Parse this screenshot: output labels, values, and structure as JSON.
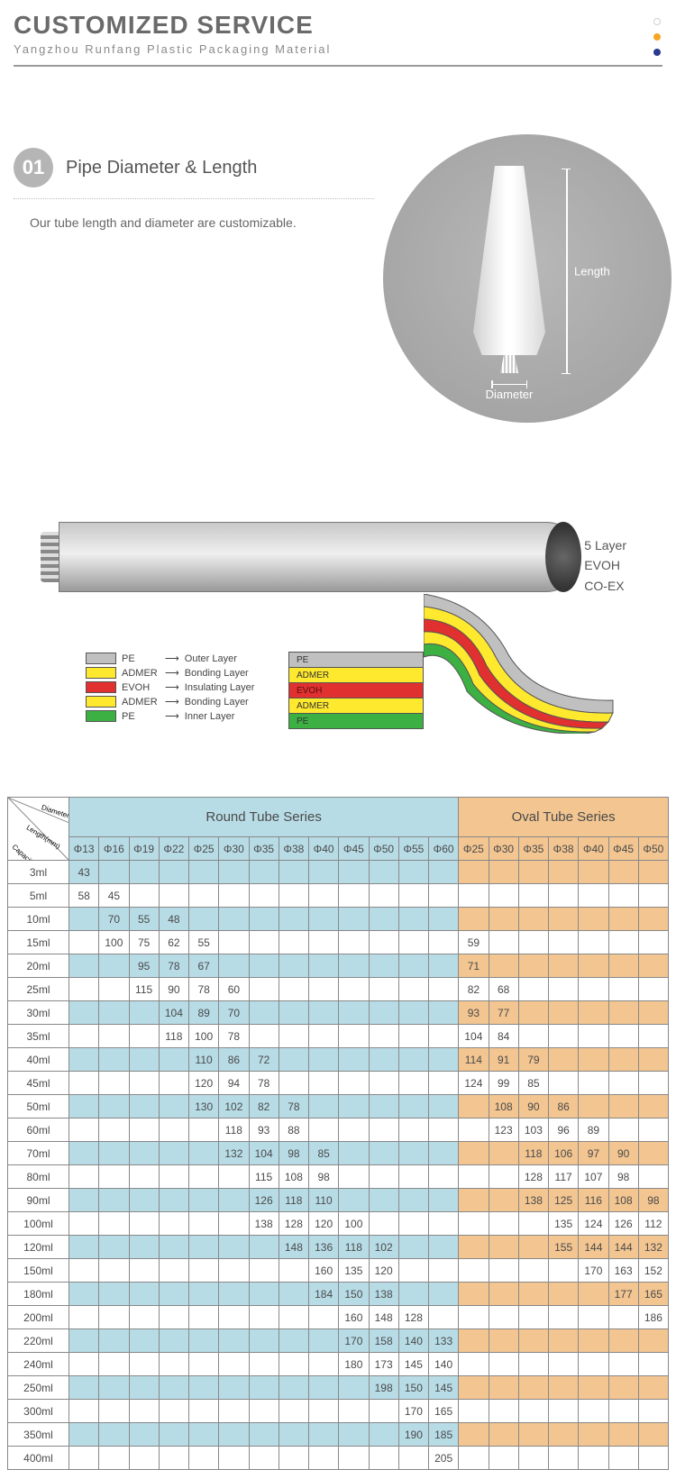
{
  "header": {
    "title": "CUSTOMIZED SERVICE",
    "subtitle": "Yangzhou Runfang Plastic Packaging Material",
    "dots": [
      "#d0d0d0",
      "#f5a623",
      "#2a3a8f"
    ]
  },
  "section1": {
    "badge": "01",
    "name": "Pipe Diameter & Length",
    "desc": "Our tube length and diameter are customizable.",
    "dim_length": "Length",
    "dim_diameter": "Diameter"
  },
  "layers": {
    "side": [
      "5 Layer",
      "EVOH",
      "CO-EX"
    ],
    "legend": [
      {
        "color": "#c0c0c0",
        "mat": "PE",
        "role": "Outer Layer"
      },
      {
        "color": "#ffe92e",
        "mat": "ADMER",
        "role": "Bonding Layer"
      },
      {
        "color": "#e03030",
        "mat": "EVOH",
        "role": "Insulating Layer"
      },
      {
        "color": "#ffe92e",
        "mat": "ADMER",
        "role": "Bonding Layer"
      },
      {
        "color": "#3cb043",
        "mat": "PE",
        "role": "Inner Layer"
      }
    ],
    "bands": [
      {
        "color": "#c0c0c0",
        "label": "PE"
      },
      {
        "color": "#ffe92e",
        "label": "ADMER"
      },
      {
        "color": "#e03030",
        "label": "EVOH",
        "txtcolor": "#5a1010"
      },
      {
        "color": "#ffe92e",
        "label": "ADMER"
      },
      {
        "color": "#3cb043",
        "label": "PE"
      }
    ]
  },
  "table": {
    "corner": [
      "Diameter(mm)",
      "Length(mm)",
      "Capacity(ml)"
    ],
    "series": [
      {
        "name": "Round Tube Series",
        "cls": "round-bg",
        "cols": 13
      },
      {
        "name": "Oval Tube Series",
        "cls": "oval-bg",
        "cols": 7
      }
    ],
    "round_dia": [
      "Φ13",
      "Φ16",
      "Φ19",
      "Φ22",
      "Φ25",
      "Φ30",
      "Φ35",
      "Φ38",
      "Φ40",
      "Φ45",
      "Φ50",
      "Φ55",
      "Φ60"
    ],
    "oval_dia": [
      "Φ25",
      "Φ30",
      "Φ35",
      "Φ38",
      "Φ40",
      "Φ45",
      "Φ50"
    ],
    "rows": [
      {
        "cap": "3ml",
        "alt": true,
        "r": [
          "43",
          "",
          "",
          "",
          "",
          "",
          "",
          "",
          "",
          "",
          "",
          "",
          ""
        ],
        "o": [
          "",
          "",
          "",
          "",
          "",
          "",
          ""
        ]
      },
      {
        "cap": "5ml",
        "alt": false,
        "r": [
          "58",
          "45",
          "",
          "",
          "",
          "",
          "",
          "",
          "",
          "",
          "",
          "",
          ""
        ],
        "o": [
          "",
          "",
          "",
          "",
          "",
          "",
          ""
        ]
      },
      {
        "cap": "10ml",
        "alt": true,
        "r": [
          "",
          "70",
          "55",
          "48",
          "",
          "",
          "",
          "",
          "",
          "",
          "",
          "",
          ""
        ],
        "o": [
          "",
          "",
          "",
          "",
          "",
          "",
          ""
        ]
      },
      {
        "cap": "15ml",
        "alt": false,
        "r": [
          "",
          "100",
          "75",
          "62",
          "55",
          "",
          "",
          "",
          "",
          "",
          "",
          "",
          ""
        ],
        "o": [
          "59",
          "",
          "",
          "",
          "",
          "",
          ""
        ]
      },
      {
        "cap": "20ml",
        "alt": true,
        "r": [
          "",
          "",
          "95",
          "78",
          "67",
          "",
          "",
          "",
          "",
          "",
          "",
          "",
          ""
        ],
        "o": [
          "71",
          "",
          "",
          "",
          "",
          "",
          ""
        ]
      },
      {
        "cap": "25ml",
        "alt": false,
        "r": [
          "",
          "",
          "115",
          "90",
          "78",
          "60",
          "",
          "",
          "",
          "",
          "",
          "",
          ""
        ],
        "o": [
          "82",
          "68",
          "",
          "",
          "",
          "",
          ""
        ]
      },
      {
        "cap": "30ml",
        "alt": true,
        "r": [
          "",
          "",
          "",
          "104",
          "89",
          "70",
          "",
          "",
          "",
          "",
          "",
          "",
          ""
        ],
        "o": [
          "93",
          "77",
          "",
          "",
          "",
          "",
          ""
        ]
      },
      {
        "cap": "35ml",
        "alt": false,
        "r": [
          "",
          "",
          "",
          "118",
          "100",
          "78",
          "",
          "",
          "",
          "",
          "",
          "",
          ""
        ],
        "o": [
          "104",
          "84",
          "",
          "",
          "",
          "",
          ""
        ]
      },
      {
        "cap": "40ml",
        "alt": true,
        "r": [
          "",
          "",
          "",
          "",
          "110",
          "86",
          "72",
          "",
          "",
          "",
          "",
          "",
          ""
        ],
        "o": [
          "114",
          "91",
          "79",
          "",
          "",
          "",
          ""
        ]
      },
      {
        "cap": "45ml",
        "alt": false,
        "r": [
          "",
          "",
          "",
          "",
          "120",
          "94",
          "78",
          "",
          "",
          "",
          "",
          "",
          ""
        ],
        "o": [
          "124",
          "99",
          "85",
          "",
          "",
          "",
          ""
        ]
      },
      {
        "cap": "50ml",
        "alt": true,
        "r": [
          "",
          "",
          "",
          "",
          "130",
          "102",
          "82",
          "78",
          "",
          "",
          "",
          "",
          ""
        ],
        "o": [
          "",
          "108",
          "90",
          "86",
          "",
          "",
          ""
        ]
      },
      {
        "cap": "60ml",
        "alt": false,
        "r": [
          "",
          "",
          "",
          "",
          "",
          "118",
          "93",
          "88",
          "",
          "",
          "",
          "",
          ""
        ],
        "o": [
          "",
          "123",
          "103",
          "96",
          "89",
          "",
          ""
        ]
      },
      {
        "cap": "70ml",
        "alt": true,
        "r": [
          "",
          "",
          "",
          "",
          "",
          "132",
          "104",
          "98",
          "85",
          "",
          "",
          "",
          ""
        ],
        "o": [
          "",
          "",
          "118",
          "106",
          "97",
          "90",
          ""
        ]
      },
      {
        "cap": "80ml",
        "alt": false,
        "r": [
          "",
          "",
          "",
          "",
          "",
          "",
          "115",
          "108",
          "98",
          "",
          "",
          "",
          ""
        ],
        "o": [
          "",
          "",
          "128",
          "117",
          "107",
          "98",
          ""
        ]
      },
      {
        "cap": "90ml",
        "alt": true,
        "r": [
          "",
          "",
          "",
          "",
          "",
          "",
          "126",
          "118",
          "110",
          "",
          "",
          "",
          ""
        ],
        "o": [
          "",
          "",
          "138",
          "125",
          "116",
          "108",
          "98"
        ]
      },
      {
        "cap": "100ml",
        "alt": false,
        "r": [
          "",
          "",
          "",
          "",
          "",
          "",
          "138",
          "128",
          "120",
          "100",
          "",
          "",
          ""
        ],
        "o": [
          "",
          "",
          "",
          "135",
          "124",
          "126",
          "112"
        ]
      },
      {
        "cap": "120ml",
        "alt": true,
        "r": [
          "",
          "",
          "",
          "",
          "",
          "",
          "",
          "148",
          "136",
          "118",
          "102",
          "",
          ""
        ],
        "o": [
          "",
          "",
          "",
          "155",
          "144",
          "144",
          "132"
        ]
      },
      {
        "cap": "150ml",
        "alt": false,
        "r": [
          "",
          "",
          "",
          "",
          "",
          "",
          "",
          "",
          "160",
          "135",
          "120",
          "",
          ""
        ],
        "o": [
          "",
          "",
          "",
          "",
          "170",
          "163",
          "152"
        ]
      },
      {
        "cap": "180ml",
        "alt": true,
        "r": [
          "",
          "",
          "",
          "",
          "",
          "",
          "",
          "",
          "184",
          "150",
          "138",
          "",
          ""
        ],
        "o": [
          "",
          "",
          "",
          "",
          "",
          "177",
          "165"
        ]
      },
      {
        "cap": "200ml",
        "alt": false,
        "r": [
          "",
          "",
          "",
          "",
          "",
          "",
          "",
          "",
          "",
          "160",
          "148",
          "128",
          ""
        ],
        "o": [
          "",
          "",
          "",
          "",
          "",
          "",
          "186"
        ]
      },
      {
        "cap": "220ml",
        "alt": true,
        "r": [
          "",
          "",
          "",
          "",
          "",
          "",
          "",
          "",
          "",
          "170",
          "158",
          "140",
          "133"
        ],
        "o": [
          "",
          "",
          "",
          "",
          "",
          "",
          ""
        ]
      },
      {
        "cap": "240ml",
        "alt": false,
        "r": [
          "",
          "",
          "",
          "",
          "",
          "",
          "",
          "",
          "",
          "180",
          "173",
          "145",
          "140"
        ],
        "o": [
          "",
          "",
          "",
          "",
          "",
          "",
          ""
        ]
      },
      {
        "cap": "250ml",
        "alt": true,
        "r": [
          "",
          "",
          "",
          "",
          "",
          "",
          "",
          "",
          "",
          "",
          "198",
          "150",
          "145"
        ],
        "o": [
          "",
          "",
          "",
          "",
          "",
          "",
          ""
        ]
      },
      {
        "cap": "300ml",
        "alt": false,
        "r": [
          "",
          "",
          "",
          "",
          "",
          "",
          "",
          "",
          "",
          "",
          "",
          "170",
          "165"
        ],
        "o": [
          "",
          "",
          "",
          "",
          "",
          "",
          ""
        ]
      },
      {
        "cap": "350ml",
        "alt": true,
        "r": [
          "",
          "",
          "",
          "",
          "",
          "",
          "",
          "",
          "",
          "",
          "",
          "190",
          "185"
        ],
        "o": [
          "",
          "",
          "",
          "",
          "",
          "",
          ""
        ]
      },
      {
        "cap": "400ml",
        "alt": false,
        "r": [
          "",
          "",
          "",
          "",
          "",
          "",
          "",
          "",
          "",
          "",
          "",
          "",
          "205"
        ],
        "o": [
          "",
          "",
          "",
          "",
          "",
          "",
          ""
        ]
      }
    ]
  }
}
